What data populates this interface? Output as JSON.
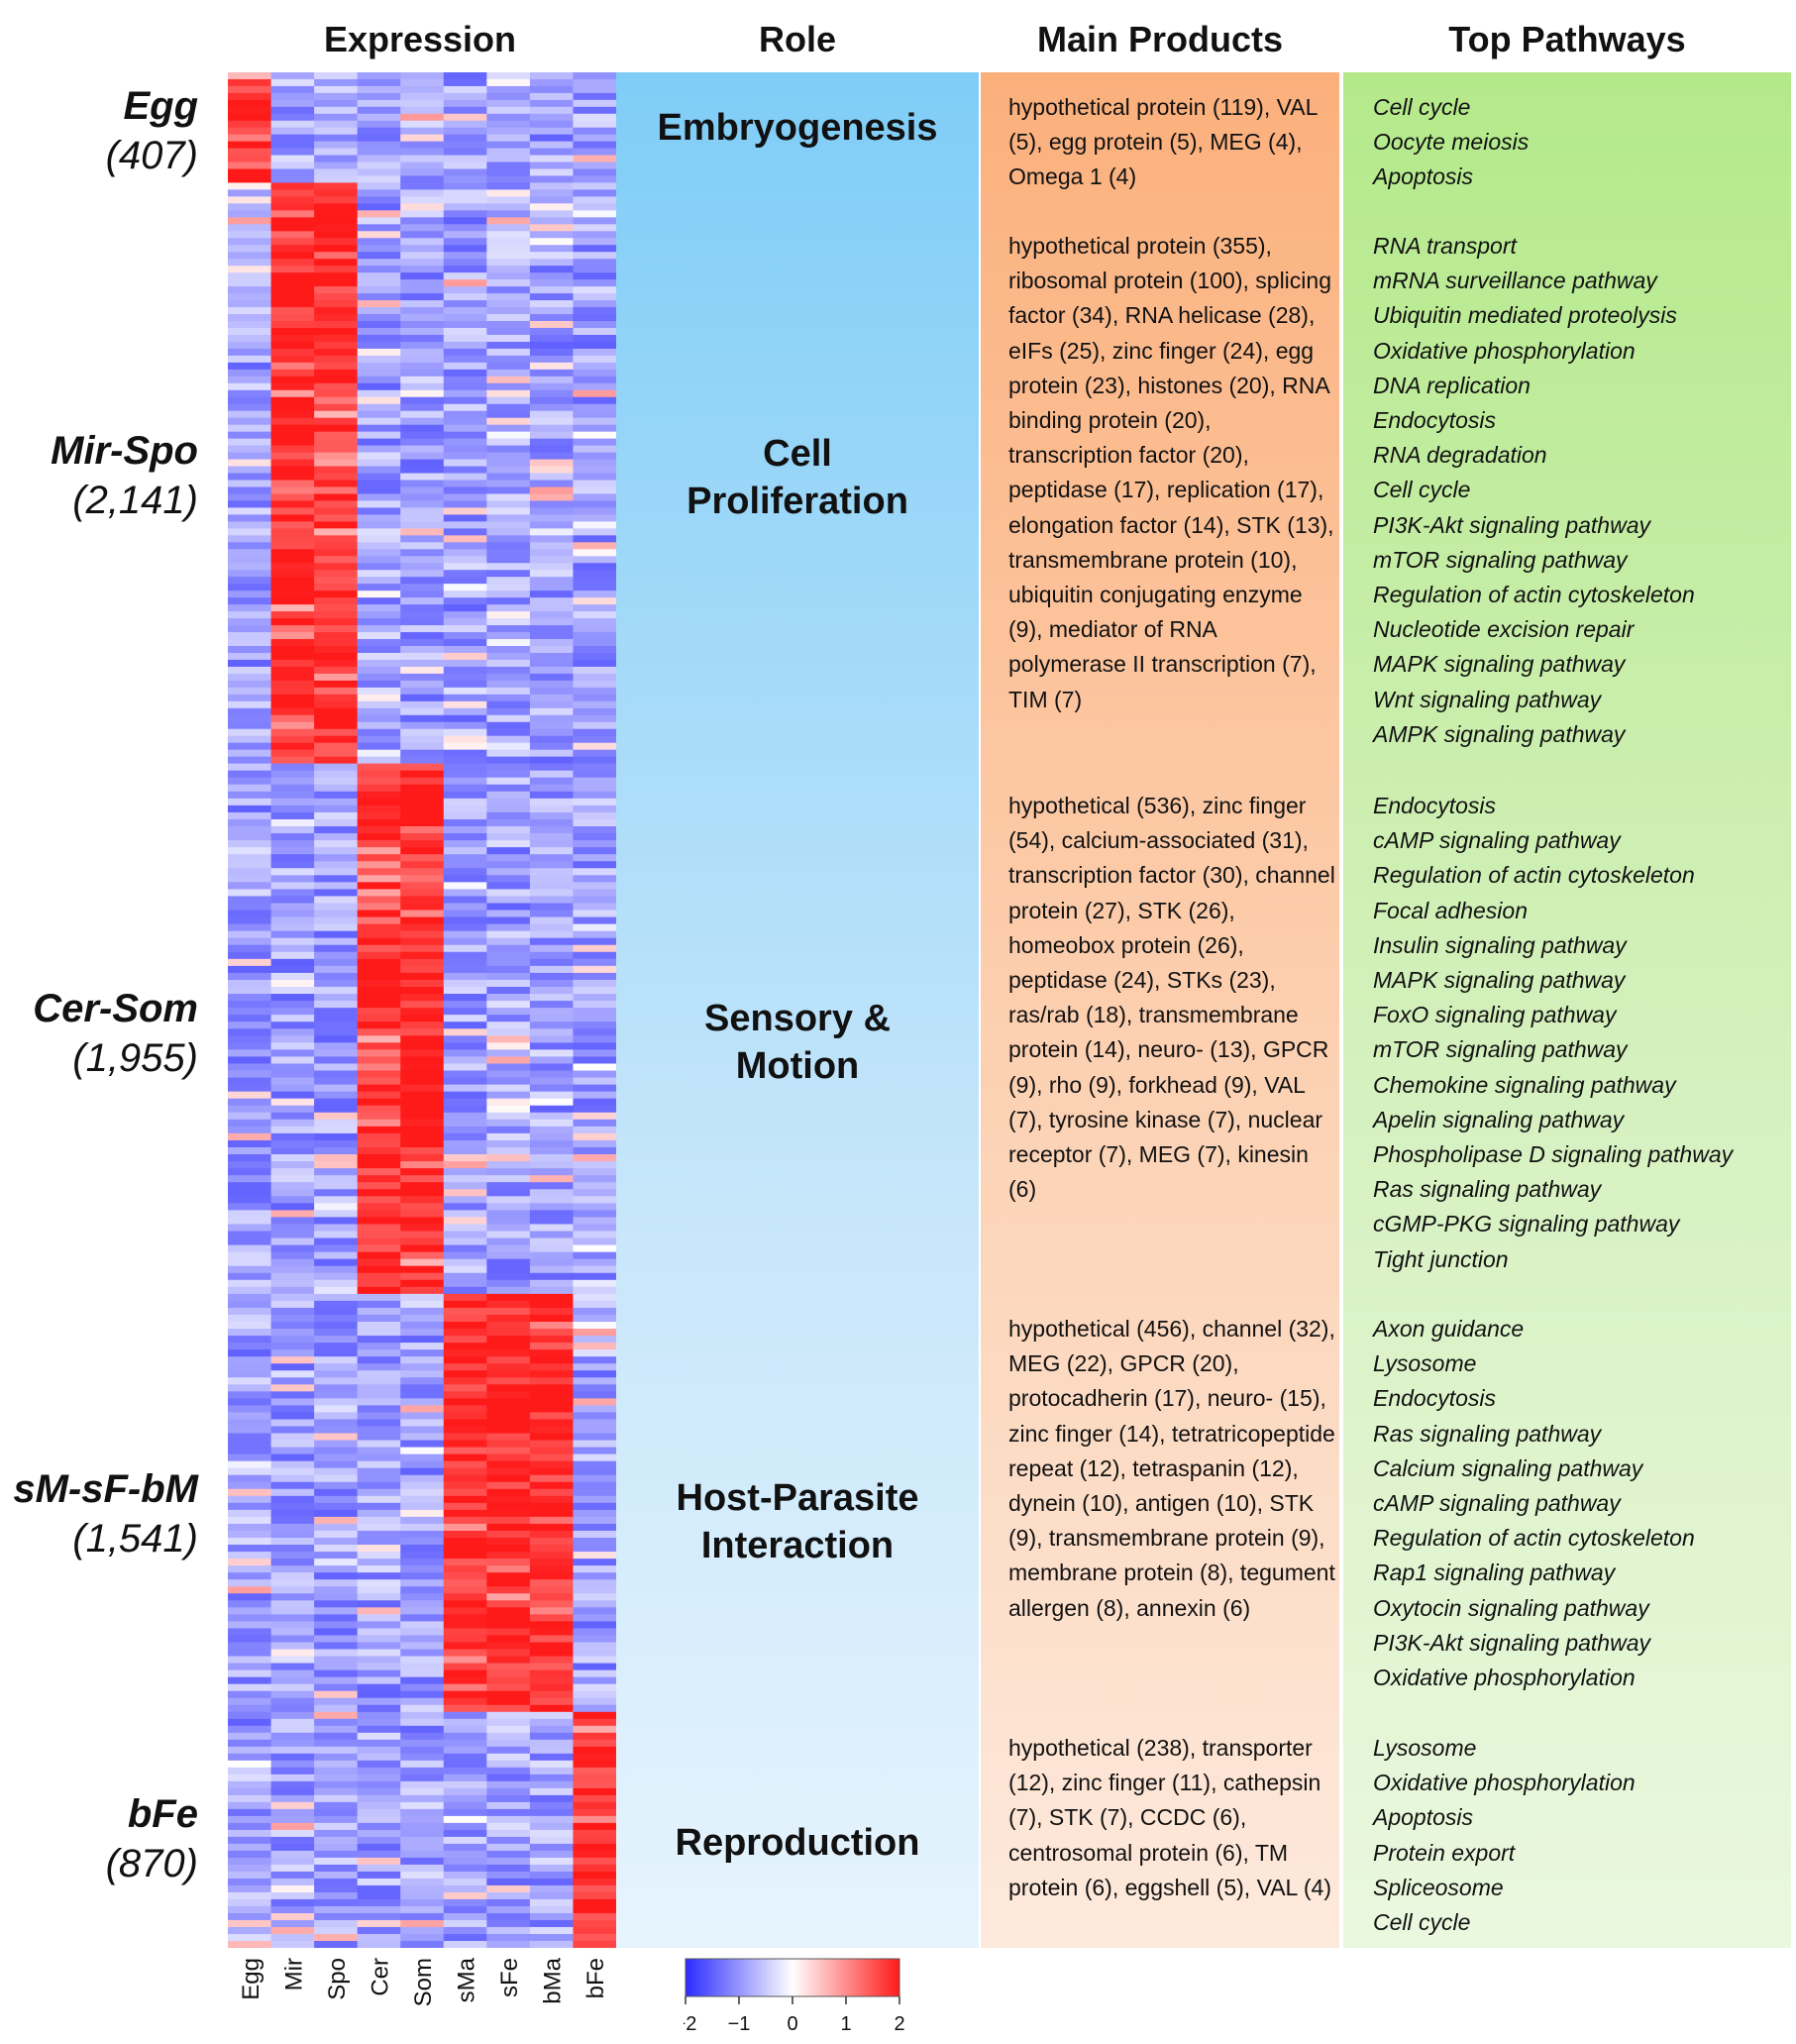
{
  "headers": {
    "expression": "Expression",
    "role": "Role",
    "products": "Main Products",
    "pathways": "Top Pathways"
  },
  "chart_data": {
    "type": "heatmap",
    "x_labels": [
      "Egg",
      "Mir",
      "Spo",
      "Cer",
      "Som",
      "sMa",
      "sFe",
      "bMa",
      "bFe"
    ],
    "colorbar": {
      "ticks": [
        "−2",
        "−1",
        "0",
        "1",
        "2"
      ],
      "range": [
        -2,
        2
      ],
      "colors": [
        "#2b2bff",
        "#ffffff",
        "#ff1a1a"
      ]
    },
    "clusters": [
      {
        "name": "Egg",
        "count": "(407)",
        "genes": 407,
        "high_samples": [
          0
        ]
      },
      {
        "name": "Mir-Spo",
        "count": "(2,141)",
        "genes": 2141,
        "high_samples": [
          1,
          2
        ]
      },
      {
        "name": "Cer-Som",
        "count": "(1,955)",
        "genes": 1955,
        "high_samples": [
          3,
          4
        ]
      },
      {
        "name": "sM-sF-bM",
        "count": "(1,541)",
        "genes": 1541,
        "high_samples": [
          5,
          6,
          7
        ]
      },
      {
        "name": "bFe",
        "count": "(870)",
        "genes": 870,
        "high_samples": [
          8
        ]
      }
    ]
  },
  "rows": [
    {
      "role": [
        "Embryogenesis"
      ],
      "products": "hypothetical protein (119), VAL (5), egg protein (5), MEG (4), Omega 1 (4)",
      "pathways": [
        "Cell cycle",
        "Oocyte meiosis",
        "Apoptosis"
      ]
    },
    {
      "role": [
        "Cell",
        "Proliferation"
      ],
      "products": "hypothetical protein (355), ribosomal protein (100), splicing factor (34), RNA helicase (28), eIFs (25), zinc finger (24), egg protein (23), histones (20), RNA binding protein (20), transcription factor (20), peptidase (17), replication (17), elongation factor (14), STK (13), transmembrane protein (10), ubiquitin conjugating enzyme (9), mediator of RNA polymerase II transcription (7), TIM (7)",
      "pathways": [
        "RNA transport",
        "mRNA surveillance pathway",
        "Ubiquitin mediated proteolysis",
        "Oxidative phosphorylation",
        "DNA replication",
        "Endocytosis",
        "RNA degradation",
        "Cell cycle",
        "PI3K-Akt signaling pathway",
        "mTOR signaling pathway",
        "Regulation of actin cytoskeleton",
        "Nucleotide excision repair",
        "MAPK signaling pathway",
        "Wnt signaling pathway",
        "AMPK signaling pathway"
      ]
    },
    {
      "role": [
        "Sensory &",
        "Motion"
      ],
      "products": "hypothetical (536), zinc finger (54), calcium-associated (31), transcription factor (30), channel protein (27), STK (26), homeobox protein (26), peptidase (24), STKs (23), ras/rab (18), transmembrane protein (14), neuro- (13), GPCR (9), rho (9), forkhead (9), VAL (7), tyrosine kinase (7), nuclear receptor (7), MEG (7), kinesin (6)",
      "pathways": [
        "Endocytosis",
        "cAMP signaling pathway",
        "Regulation of actin cytoskeleton",
        "Focal adhesion",
        "Insulin signaling pathway",
        "MAPK signaling pathway",
        "FoxO signaling pathway",
        "mTOR signaling pathway",
        "Chemokine signaling pathway",
        "Apelin signaling pathway",
        "Phospholipase D signaling pathway",
        "Ras signaling pathway",
        "cGMP-PKG signaling pathway",
        "Tight junction"
      ]
    },
    {
      "role": [
        "Host-Parasite",
        "Interaction"
      ],
      "products": "hypothetical (456), channel (32), MEG (22), GPCR (20), protocadherin (17), neuro- (15), zinc finger (14), tetratricopeptide repeat (12), tetraspanin (12), dynein (10), antigen (10), STK (9), transmembrane protein  (9), membrane protein (8), tegument allergen (8), annexin (6)",
      "pathways": [
        "Axon guidance",
        "Lysosome",
        "Endocytosis",
        "Ras signaling pathway",
        "Calcium signaling pathway",
        "cAMP signaling pathway",
        "Regulation of actin cytoskeleton",
        "Rap1 signaling pathway",
        "Oxytocin signaling pathway",
        "PI3K-Akt signaling pathway",
        "Oxidative phosphorylation"
      ]
    },
    {
      "role": [
        "Reproduction"
      ],
      "products": "hypothetical (238), transporter (12), zinc finger (11), cathepsin (7), STK (7), CCDC (6), centrosomal protein (6), TM protein (6), eggshell (5), VAL (4)",
      "pathways": [
        "Lysosome",
        "Oxidative phosphorylation",
        "Apoptosis",
        "Protein export",
        "Spliceosome",
        "Cell cycle"
      ]
    }
  ]
}
